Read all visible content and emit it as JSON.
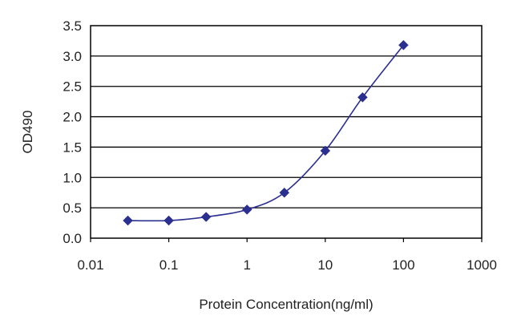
{
  "chart_data": {
    "type": "line",
    "title": "",
    "xlabel": "Protein Concentration(ng/ml)",
    "ylabel": "OD490",
    "x_scale": "log",
    "xlim": [
      0.01,
      1000
    ],
    "ylim": [
      0,
      3.5
    ],
    "x_ticks": [
      "0.01",
      "0.1",
      "1",
      "10",
      "100",
      "1000"
    ],
    "y_ticks": [
      "0.0",
      "0.5",
      "1.0",
      "1.5",
      "2.0",
      "2.5",
      "3.0",
      "3.5"
    ],
    "grid": "horizontal",
    "legend": "none",
    "marker": "diamond",
    "series": [
      {
        "color": "#2b2f8f",
        "x": [
          0.03,
          0.1,
          0.3,
          1,
          3,
          10,
          30,
          100
        ],
        "y": [
          0.29,
          0.29,
          0.35,
          0.47,
          0.75,
          1.44,
          2.32,
          3.18
        ]
      }
    ]
  }
}
